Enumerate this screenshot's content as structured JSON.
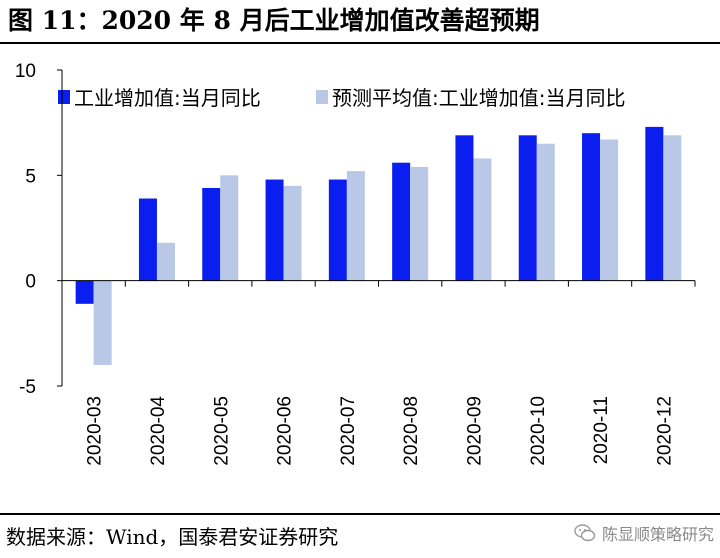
{
  "title": "图 11：2020 年 8 月后工业增加值改善超预期",
  "source": "数据来源：Wind，国泰君安证券研究",
  "watermark": "陈显顺策略研究",
  "colors": {
    "series1": "#0A1EF0",
    "series2": "#B8C8E6",
    "axis": "#000000"
  },
  "chart_data": {
    "type": "bar",
    "categories": [
      "2020-03",
      "2020-04",
      "2020-05",
      "2020-06",
      "2020-07",
      "2020-08",
      "2020-09",
      "2020-10",
      "2020-11",
      "2020-12"
    ],
    "series": [
      {
        "name": "工业增加值:当月同比",
        "values": [
          -1.1,
          3.9,
          4.4,
          4.8,
          4.8,
          5.6,
          6.9,
          6.9,
          7.0,
          7.3
        ]
      },
      {
        "name": "预测平均值:工业增加值:当月同比",
        "values": [
          -4.0,
          1.8,
          5.0,
          4.5,
          5.2,
          5.4,
          5.8,
          6.5,
          6.7,
          6.9
        ]
      }
    ],
    "yticks": [
      10,
      5,
      0,
      -5
    ],
    "ylim": [
      -5,
      10
    ],
    "grid": false,
    "legend": "top-left"
  }
}
